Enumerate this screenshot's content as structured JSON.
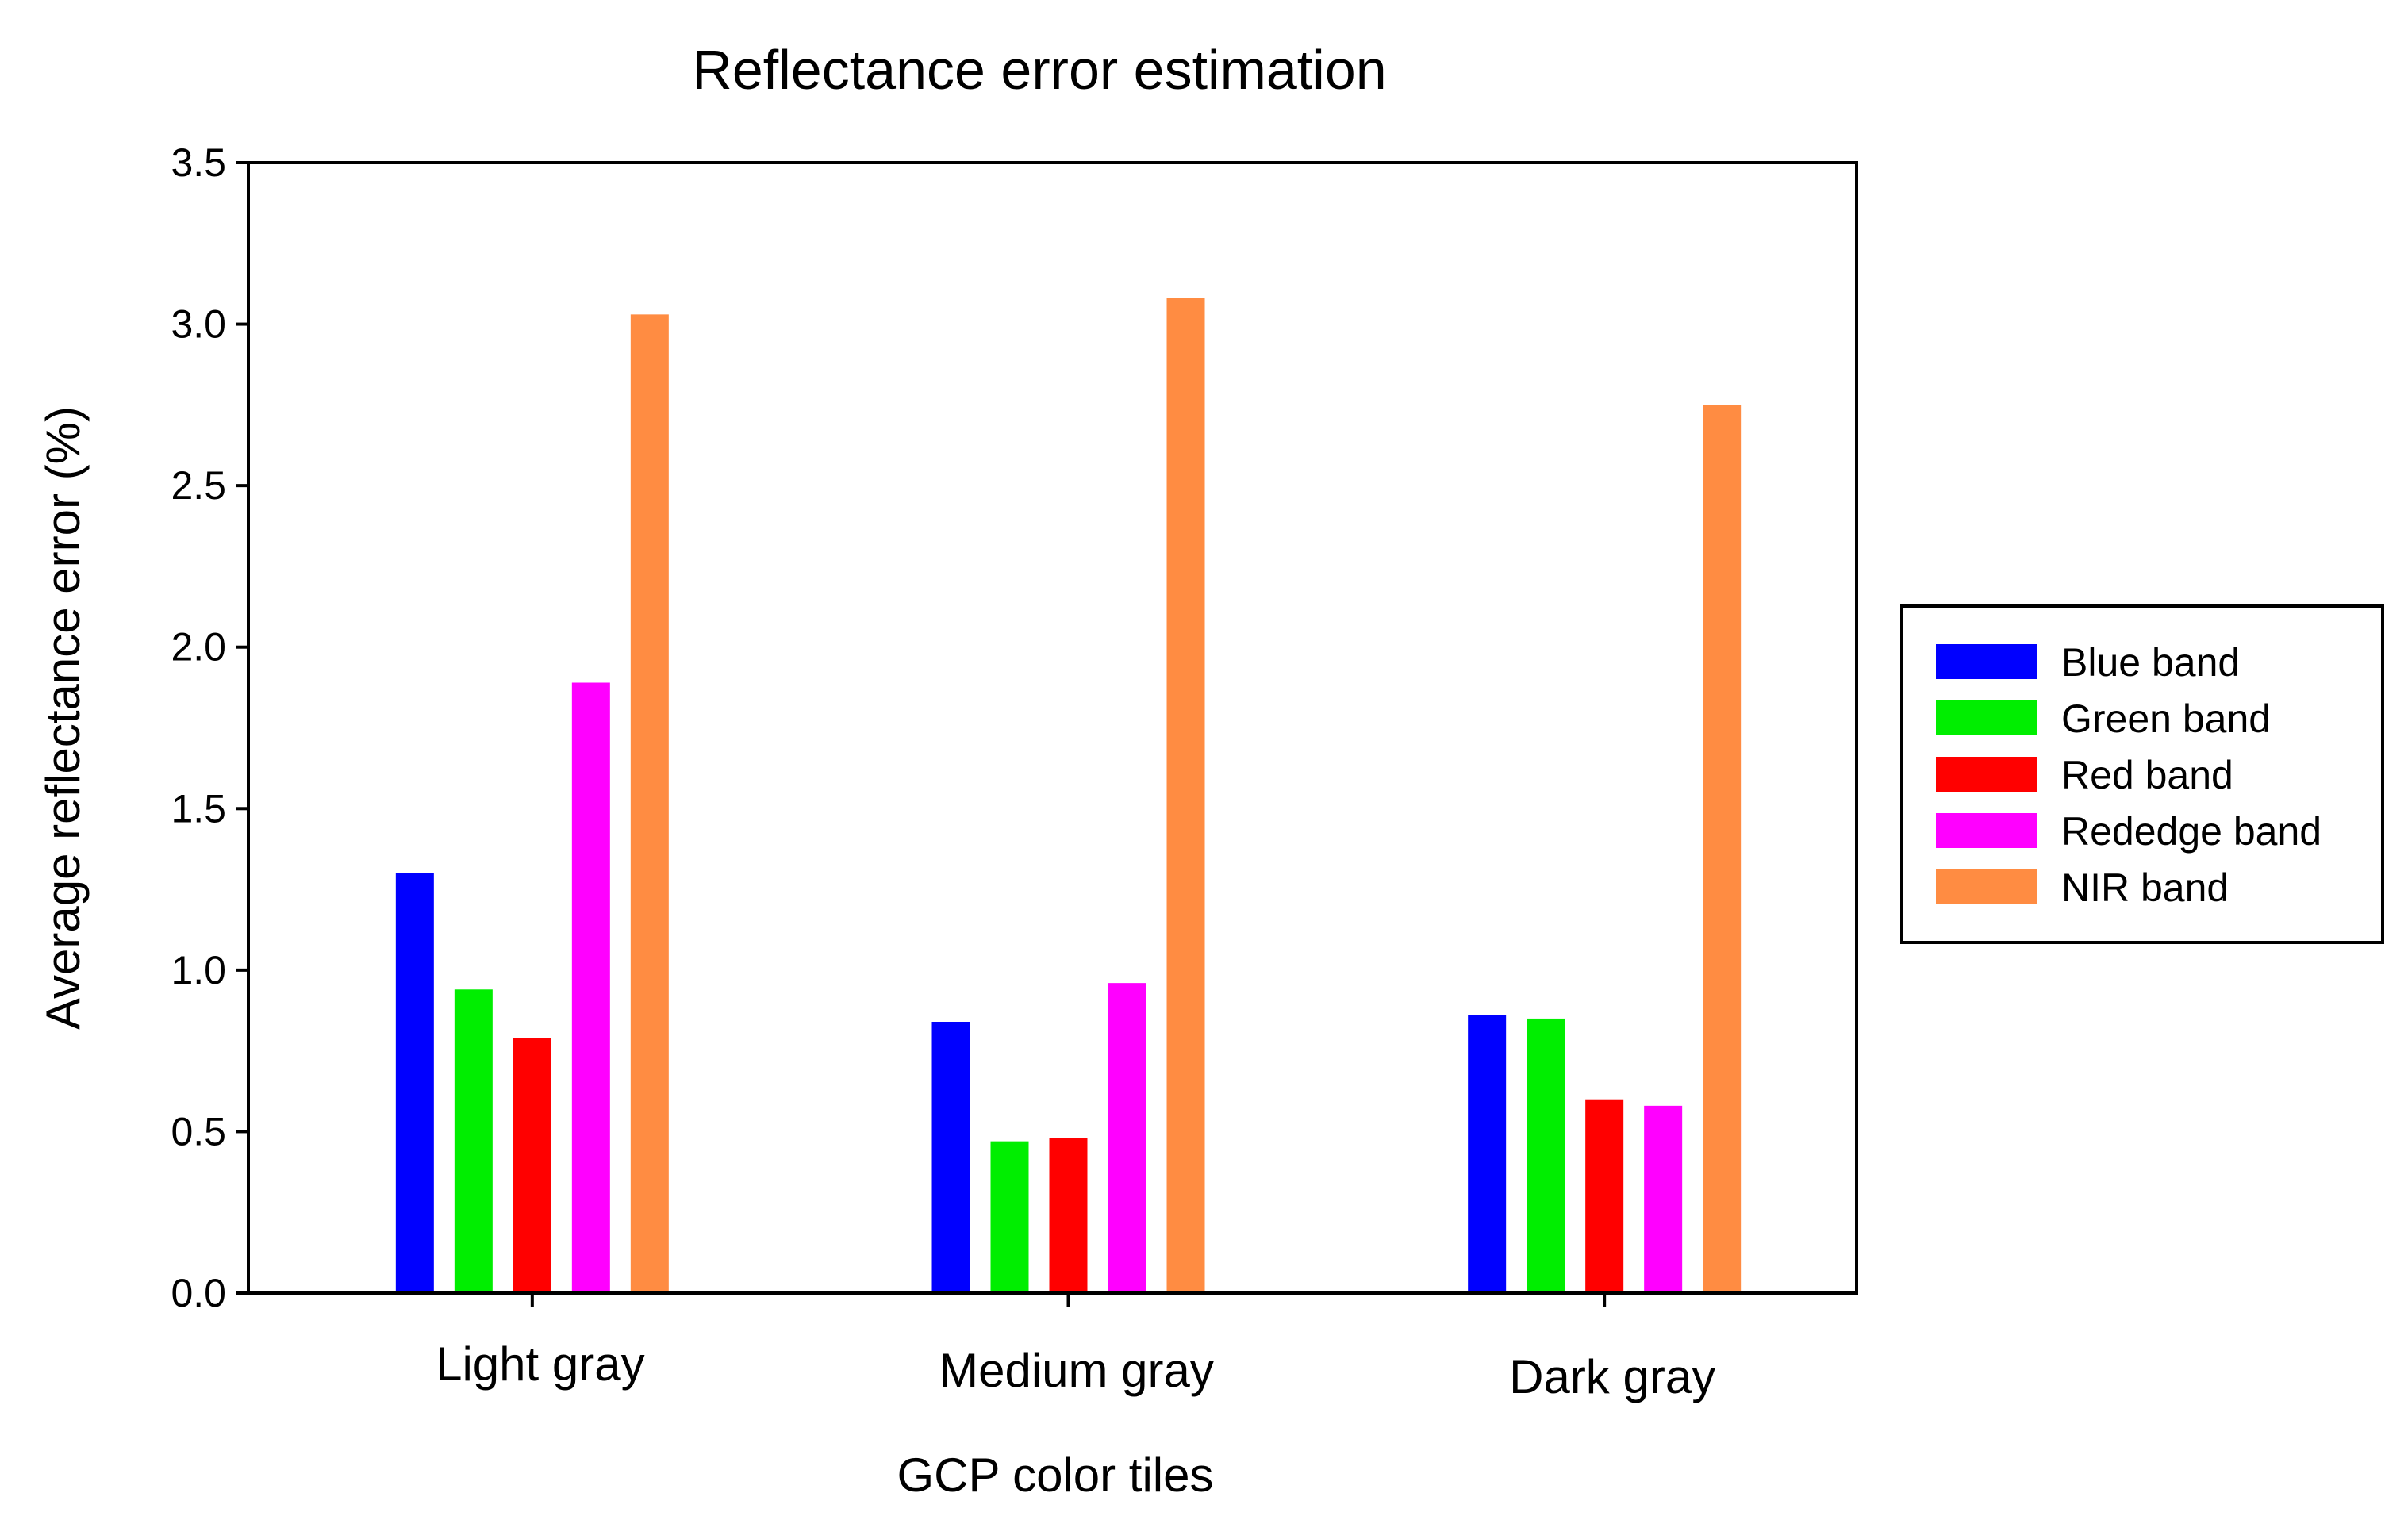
{
  "chart_data": {
    "type": "bar",
    "title": "Reflectance error estimation",
    "xlabel": "GCP color tiles",
    "ylabel": "Average reflectance error (%)",
    "ylim": [
      0,
      3.5
    ],
    "yticks": [
      0.0,
      0.5,
      1.0,
      1.5,
      2.0,
      2.5,
      3.0,
      3.5
    ],
    "ytick_labels": [
      "0.0",
      "0.5",
      "1.0",
      "1.5",
      "2.0",
      "2.5",
      "3.0",
      "3.5"
    ],
    "categories": [
      "Light gray",
      "Medium gray",
      "Dark gray"
    ],
    "series": [
      {
        "name": "Blue band",
        "color": "#0000ff",
        "values": [
          1.3,
          0.84,
          0.86
        ]
      },
      {
        "name": "Green band",
        "color": "#00ee00",
        "values": [
          0.94,
          0.47,
          0.85
        ]
      },
      {
        "name": "Red band",
        "color": "#ff0000",
        "values": [
          0.79,
          0.48,
          0.6
        ]
      },
      {
        "name": "Rededge band",
        "color": "#ff00ff",
        "values": [
          1.89,
          0.96,
          0.58
        ]
      },
      {
        "name": "NIR band",
        "color": "#ff8c42",
        "values": [
          3.03,
          3.08,
          2.75
        ]
      }
    ],
    "legend_position": "right",
    "grid": false
  }
}
